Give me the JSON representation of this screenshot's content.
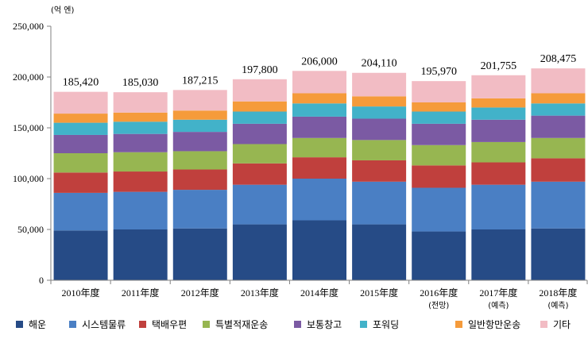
{
  "chart_data": {
    "type": "bar",
    "stacked": true,
    "unit_label": "(억 엔)",
    "categories": [
      "2010年度",
      "2011年度",
      "2012年度",
      "2013年度",
      "2014年度",
      "2015年度",
      "2016年度",
      "2017年度",
      "2018年度"
    ],
    "category_notes": [
      "",
      "",
      "",
      "",
      "",
      "",
      "(전망)",
      "(예측)",
      "(예측)"
    ],
    "totals": [
      185420,
      185030,
      187215,
      197800,
      206000,
      204110,
      195970,
      201755,
      208475
    ],
    "total_labels": [
      "185,420",
      "185,030",
      "187,215",
      "197,800",
      "206,000",
      "204,110",
      "195,970",
      "201,755",
      "208,475"
    ],
    "series": [
      {
        "name": "해운",
        "color": "#264b86",
        "values": [
          49000,
          50000,
          51000,
          55000,
          59000,
          55000,
          48000,
          50000,
          51000
        ]
      },
      {
        "name": "시스템물류",
        "color": "#4a7fc4",
        "values": [
          37000,
          37000,
          38000,
          39000,
          41000,
          42000,
          43000,
          44000,
          46000
        ]
      },
      {
        "name": "택배우편",
        "color": "#c0403d",
        "values": [
          20000,
          20000,
          20000,
          21000,
          21000,
          21000,
          22000,
          22000,
          23000
        ]
      },
      {
        "name": "특별적재운송",
        "color": "#97b651",
        "values": [
          19000,
          19000,
          18000,
          19000,
          19000,
          20000,
          20000,
          20000,
          20000
        ]
      },
      {
        "name": "보통창고",
        "color": "#7b5aa3",
        "values": [
          18000,
          18000,
          19000,
          20000,
          21000,
          21000,
          21000,
          22000,
          22000
        ]
      },
      {
        "name": "포워딩",
        "color": "#42b2c9",
        "values": [
          12000,
          12000,
          12000,
          12000,
          13000,
          12000,
          12000,
          12000,
          12000
        ]
      },
      {
        "name": "일반항만운송",
        "color": "#f59b3b",
        "values": [
          9000,
          9000,
          9000,
          10000,
          10000,
          10000,
          9000,
          9000,
          10000
        ]
      },
      {
        "name": "기타",
        "color": "#f2bcc4",
        "values": [
          21420,
          20030,
          20215,
          21800,
          22000,
          23110,
          20970,
          22755,
          24475
        ]
      }
    ],
    "ylim": [
      0,
      250000
    ],
    "yticks": [
      0,
      50000,
      100000,
      150000,
      200000,
      250000
    ],
    "ytick_labels": [
      "0",
      "50,000",
      "100,000",
      "150,000",
      "200,000",
      "250,000"
    ],
    "grid": false,
    "legend_position": "bottom"
  }
}
